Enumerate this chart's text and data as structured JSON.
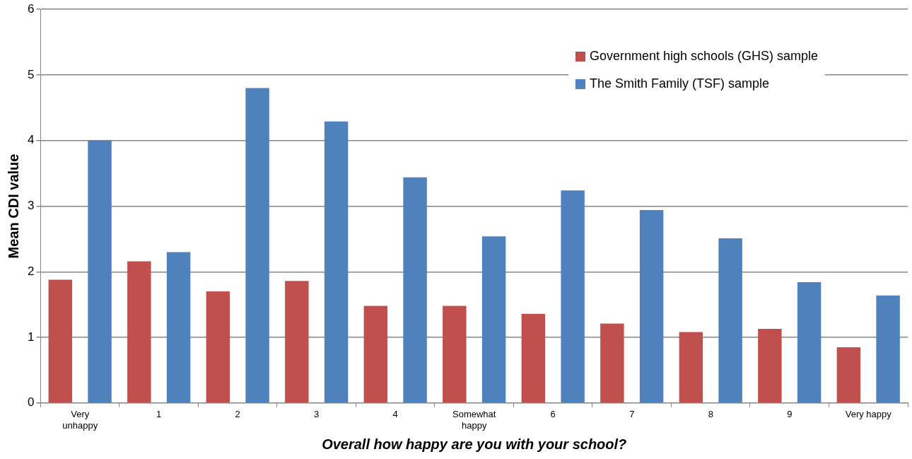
{
  "chart_data": {
    "type": "bar",
    "xlabel": "Overall how happy are you with your school?",
    "ylabel": "Mean CDI value",
    "categories": [
      "Very unhappy",
      "1",
      "2",
      "3",
      "4",
      "Somewhat happy",
      "6",
      "7",
      "8",
      "9",
      "Very happy"
    ],
    "series": [
      {
        "name": "Government high schools (GHS) sample",
        "color": "#c0504d",
        "values": [
          1.88,
          2.16,
          1.7,
          1.86,
          1.48,
          1.48,
          1.36,
          1.21,
          1.08,
          1.13,
          0.85
        ]
      },
      {
        "name": "The Smith Family (TSF) sample",
        "color": "#4f81bd",
        "values": [
          4.0,
          2.3,
          4.8,
          4.29,
          3.44,
          2.54,
          3.24,
          2.94,
          2.51,
          1.84,
          1.64
        ]
      }
    ],
    "ylim": [
      0,
      6
    ],
    "yticks": [
      0,
      1,
      2,
      3,
      4,
      5,
      6
    ],
    "grid": "y",
    "legend": "top right"
  }
}
